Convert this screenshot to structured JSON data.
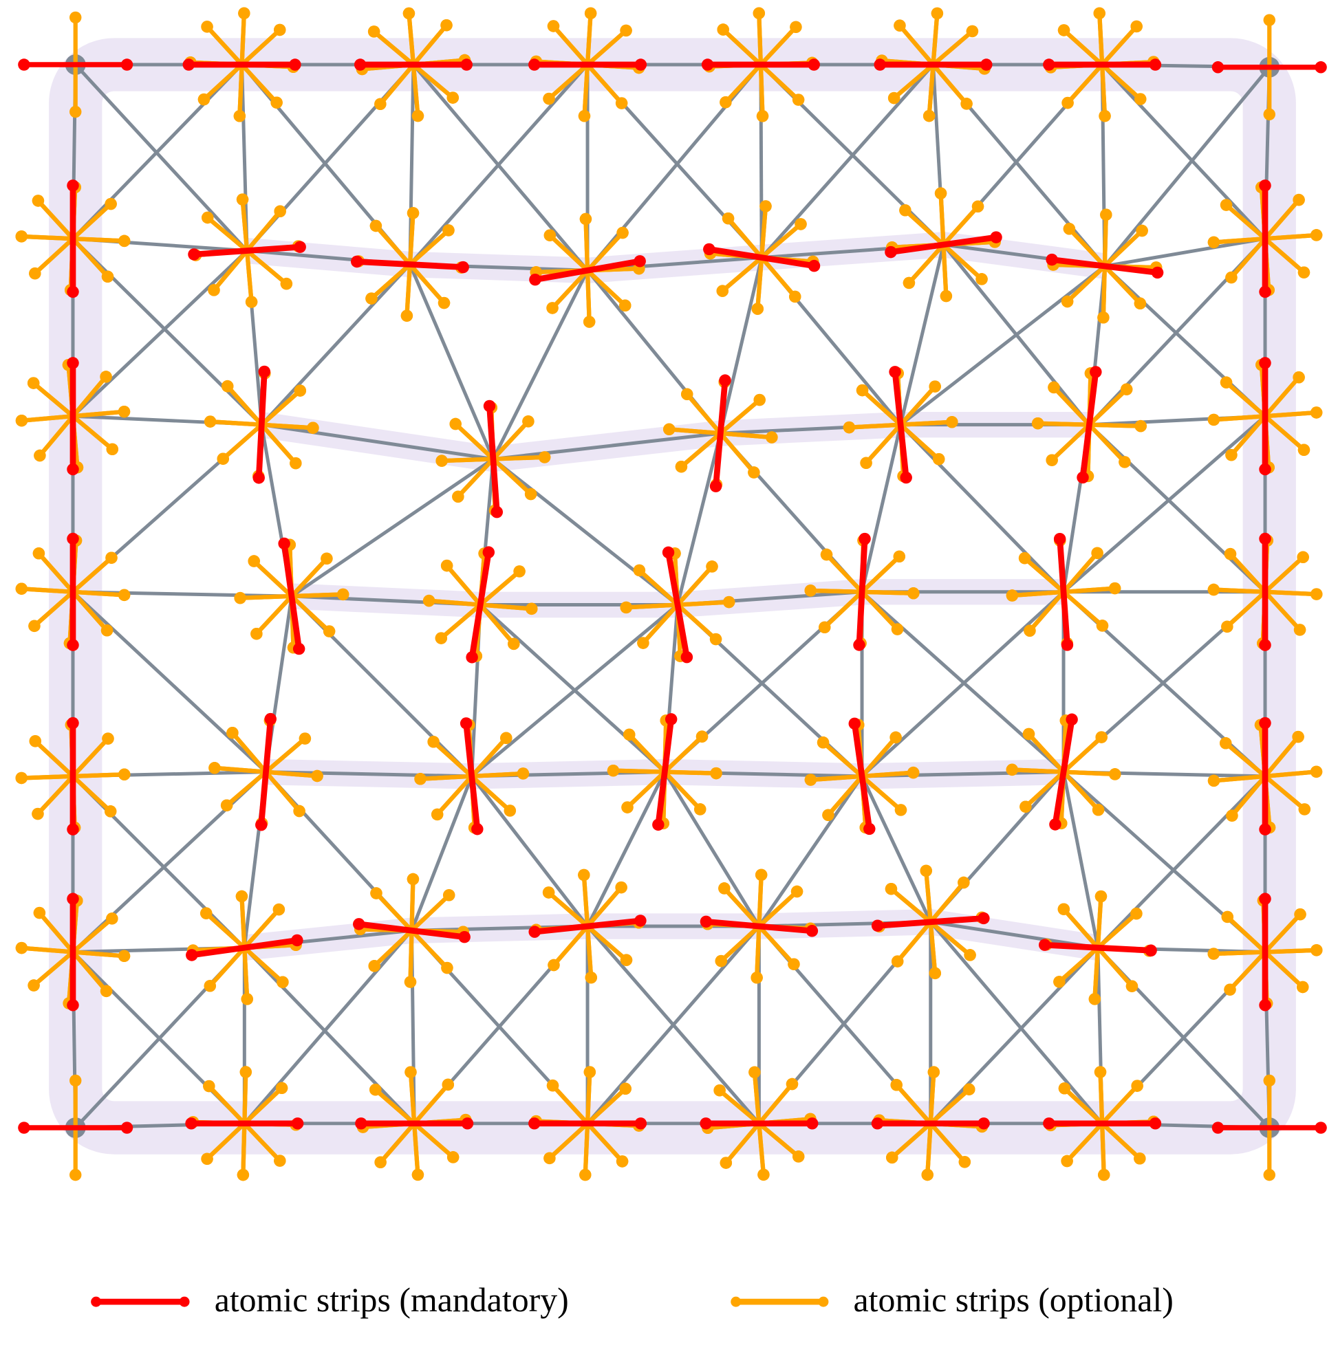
{
  "legend": {
    "items": [
      {
        "label": "atomic strips (mandatory)",
        "color": "#ff0000"
      },
      {
        "label": "atomic strips (optional)",
        "color": "#ffa500"
      }
    ]
  }
}
